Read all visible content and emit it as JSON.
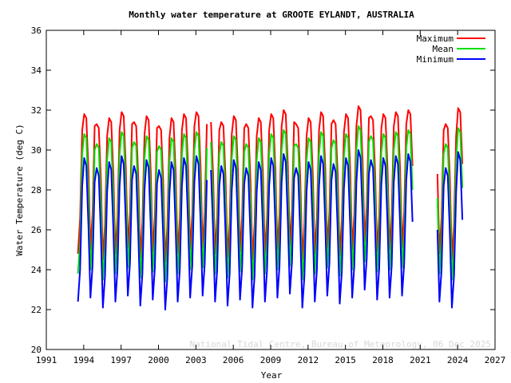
{
  "chart_data": {
    "type": "line",
    "title": "Monthly water temperature at GROOTE EYLANDT, AUSTRALIA",
    "xlabel": "Year",
    "ylabel": "Water Temperature (deg C)",
    "annotation": "National Tidal Centre, Bureau of Meteorology, 06 Dec 2025",
    "xlim": [
      1991,
      2027
    ],
    "xticks": [
      1991,
      1994,
      1997,
      2000,
      2003,
      2006,
      2009,
      2012,
      2015,
      2018,
      2021,
      2024,
      2027
    ],
    "ylim": [
      20,
      36
    ],
    "yticks": [
      20,
      22,
      24,
      26,
      28,
      30,
      32,
      34,
      36
    ],
    "grid": false,
    "legend": "upper right",
    "x": [
      1993.54,
      1993.71,
      1993.88,
      1994.04,
      1994.21,
      1994.38,
      1994.54,
      1994.71,
      1994.88,
      1995.04,
      1995.21,
      1995.38,
      1995.54,
      1995.71,
      1995.88,
      1996.04,
      1996.21,
      1996.38,
      1996.54,
      1996.71,
      1996.88,
      1997.04,
      1997.21,
      1997.38,
      1997.54,
      1997.71,
      1997.88,
      1998.04,
      1998.21,
      1998.38,
      1998.54,
      1998.71,
      1998.88,
      1999.04,
      1999.21,
      1999.38,
      1999.54,
      1999.71,
      1999.88,
      2000.04,
      2000.21,
      2000.38,
      2000.54,
      2000.71,
      2000.88,
      2001.04,
      2001.21,
      2001.38,
      2001.54,
      2001.71,
      2001.88,
      2002.04,
      2002.21,
      2002.38,
      2002.54,
      2002.71,
      2002.88,
      2003.04,
      2003.21,
      2003.38,
      2003.54,
      2003.71,
      2003.88,
      2004.04,
      2004.21,
      2004.38,
      2004.54,
      2004.71,
      2004.88,
      2005.04,
      2005.21,
      2005.38,
      2005.54,
      2005.71,
      2005.88,
      2006.04,
      2006.21,
      2006.38,
      2006.54,
      2006.71,
      2006.88,
      2007.04,
      2007.21,
      2007.38,
      2007.54,
      2007.71,
      2007.88,
      2008.04,
      2008.21,
      2008.38,
      2008.54,
      2008.71,
      2008.88,
      2009.04,
      2009.21,
      2009.38,
      2009.54,
      2009.71,
      2009.88,
      2010.04,
      2010.21,
      2010.38,
      2010.54,
      2010.71,
      2010.88,
      2011.04,
      2011.21,
      2011.38,
      2011.54,
      2011.71,
      2011.88,
      2012.04,
      2012.21,
      2012.38,
      2012.54,
      2012.71,
      2012.88,
      2013.04,
      2013.21,
      2013.38,
      2013.54,
      2013.71,
      2013.88,
      2014.04,
      2014.21,
      2014.38,
      2014.54,
      2014.71,
      2014.88,
      2015.04,
      2015.21,
      2015.38,
      2015.54,
      2015.71,
      2015.88,
      2016.04,
      2016.21,
      2016.38,
      2016.54,
      2016.71,
      2016.88,
      2017.04,
      2017.21,
      2017.38,
      2017.54,
      2017.71,
      2017.88,
      2018.04,
      2018.21,
      2018.38,
      2018.54,
      2018.71,
      2018.88,
      2019.04,
      2019.21,
      2019.38,
      2019.54,
      2019.71,
      2019.88,
      2020.04,
      2020.21,
      2020.38,
      2021.0,
      2022.38,
      2022.54,
      2022.71,
      2022.88,
      2023.04,
      2023.21,
      2023.38,
      2023.54,
      2023.71,
      2023.88,
      2024.04,
      2024.21,
      2024.38
    ],
    "series": [
      {
        "name": "Maximum",
        "color": "#ff0000",
        "values": [
          24.8,
          26.6,
          31.0,
          31.8,
          31.6,
          29.0,
          25.0,
          26.8,
          31.2,
          31.3,
          31.1,
          28.5,
          24.5,
          26.3,
          30.7,
          31.6,
          31.4,
          28.8,
          24.8,
          26.6,
          31.0,
          31.9,
          31.7,
          29.1,
          25.1,
          26.9,
          31.3,
          31.4,
          31.2,
          28.6,
          24.6,
          26.4,
          30.8,
          31.7,
          31.5,
          28.9,
          24.9,
          26.7,
          31.1,
          31.2,
          31.0,
          28.4,
          24.4,
          26.2,
          30.6,
          31.6,
          31.4,
          28.8,
          24.8,
          26.6,
          31.0,
          31.8,
          31.6,
          29.0,
          25.0,
          26.8,
          31.2,
          31.9,
          31.7,
          29.1,
          25.1,
          26.9,
          31.3,
          null,
          31.4,
          28.8,
          24.8,
          26.6,
          31.0,
          31.4,
          31.2,
          28.6,
          24.6,
          26.4,
          30.8,
          31.7,
          31.5,
          28.9,
          24.9,
          26.7,
          31.1,
          31.3,
          31.1,
          28.5,
          24.5,
          26.3,
          30.7,
          31.6,
          31.4,
          28.8,
          24.8,
          26.6,
          31.0,
          31.8,
          31.6,
          29.0,
          25.0,
          26.8,
          31.2,
          32.0,
          31.8,
          29.2,
          25.2,
          27.0,
          31.4,
          31.3,
          31.1,
          28.5,
          24.5,
          26.3,
          30.7,
          31.6,
          31.4,
          28.8,
          24.8,
          26.6,
          31.0,
          31.9,
          31.7,
          29.1,
          25.1,
          26.9,
          31.3,
          31.5,
          31.3,
          28.7,
          24.7,
          26.5,
          30.9,
          31.8,
          31.6,
          29.0,
          25.0,
          26.8,
          31.2,
          32.2,
          32.0,
          29.4,
          25.4,
          27.2,
          31.6,
          31.7,
          31.5,
          28.9,
          24.9,
          26.7,
          31.1,
          31.8,
          31.6,
          29.0,
          25.0,
          26.8,
          31.2,
          31.9,
          31.7,
          29.1,
          25.1,
          26.9,
          31.3,
          32.0,
          31.8,
          29.2,
          null,
          28.8,
          24.8,
          26.6,
          31.0,
          31.3,
          31.1,
          28.5,
          24.5,
          26.3,
          30.7,
          32.1,
          31.9,
          29.3
        ]
      },
      {
        "name": "Mean",
        "color": "#00e000",
        "values": [
          23.8,
          25.4,
          29.8,
          30.8,
          30.6,
          27.8,
          24.0,
          25.6,
          30.0,
          30.3,
          30.1,
          27.3,
          23.5,
          25.1,
          29.5,
          30.6,
          30.4,
          27.6,
          23.8,
          25.4,
          29.8,
          30.9,
          30.7,
          27.9,
          24.1,
          25.7,
          30.1,
          30.4,
          30.2,
          27.4,
          23.6,
          25.2,
          29.6,
          30.7,
          30.5,
          27.7,
          23.9,
          25.5,
          29.9,
          30.2,
          30.0,
          27.2,
          23.4,
          25.0,
          29.4,
          30.6,
          30.4,
          27.6,
          23.8,
          25.4,
          29.8,
          30.8,
          30.6,
          27.8,
          24.0,
          25.6,
          30.0,
          30.9,
          30.7,
          27.9,
          24.1,
          25.7,
          30.1,
          null,
          30.4,
          27.6,
          23.8,
          25.4,
          29.8,
          30.4,
          30.2,
          27.4,
          23.6,
          25.2,
          29.6,
          30.7,
          30.5,
          27.7,
          23.9,
          25.5,
          29.9,
          30.3,
          30.1,
          27.3,
          23.5,
          25.1,
          29.5,
          30.6,
          30.4,
          27.6,
          23.8,
          25.4,
          29.8,
          30.8,
          30.6,
          27.8,
          24.0,
          25.6,
          30.0,
          31.0,
          30.8,
          28.0,
          24.2,
          25.8,
          30.2,
          30.3,
          30.1,
          27.3,
          23.5,
          25.1,
          29.5,
          30.6,
          30.4,
          27.6,
          23.8,
          25.4,
          29.8,
          30.9,
          30.7,
          27.9,
          24.1,
          25.7,
          30.1,
          30.5,
          30.3,
          27.5,
          23.7,
          25.3,
          29.7,
          30.8,
          30.6,
          27.8,
          24.0,
          25.6,
          30.0,
          31.2,
          31.0,
          28.2,
          24.4,
          26.0,
          30.4,
          30.7,
          30.5,
          27.7,
          23.9,
          25.5,
          29.9,
          30.8,
          30.6,
          27.8,
          24.0,
          25.6,
          30.0,
          30.9,
          30.7,
          27.9,
          24.1,
          25.7,
          30.1,
          31.0,
          30.8,
          28.0,
          null,
          27.6,
          23.8,
          25.4,
          29.8,
          30.3,
          30.1,
          27.3,
          23.5,
          25.1,
          29.5,
          31.1,
          30.9,
          28.1
        ]
      },
      {
        "name": "Minimum",
        "color": "#0000ff",
        "values": [
          22.4,
          24.0,
          28.2,
          29.6,
          29.2,
          26.2,
          22.6,
          24.2,
          28.4,
          29.1,
          28.7,
          25.7,
          22.1,
          23.7,
          27.9,
          29.4,
          29.0,
          26.0,
          22.4,
          24.0,
          28.2,
          29.7,
          29.3,
          26.3,
          22.7,
          24.3,
          28.5,
          29.2,
          28.8,
          25.8,
          22.2,
          23.8,
          28.0,
          29.5,
          29.1,
          26.1,
          22.5,
          24.1,
          28.3,
          29.0,
          28.6,
          25.6,
          22.0,
          23.6,
          27.8,
          29.4,
          29.0,
          26.0,
          22.4,
          24.0,
          28.2,
          29.6,
          29.2,
          26.2,
          22.6,
          24.2,
          28.4,
          29.7,
          29.3,
          26.3,
          22.7,
          24.3,
          28.5,
          null,
          29.0,
          26.0,
          22.4,
          24.0,
          28.2,
          29.2,
          28.8,
          25.8,
          22.2,
          23.8,
          28.0,
          29.5,
          29.1,
          26.1,
          22.5,
          24.1,
          28.3,
          29.1,
          28.7,
          25.7,
          22.1,
          23.7,
          27.9,
          29.4,
          29.0,
          26.0,
          22.4,
          24.0,
          28.2,
          29.6,
          29.2,
          26.2,
          22.6,
          24.2,
          28.4,
          29.8,
          29.4,
          26.4,
          22.8,
          24.4,
          28.6,
          29.1,
          28.7,
          25.7,
          22.1,
          23.7,
          27.9,
          29.4,
          29.0,
          26.0,
          22.4,
          24.0,
          28.2,
          29.7,
          29.3,
          26.3,
          22.7,
          24.3,
          28.5,
          29.3,
          28.9,
          25.9,
          22.3,
          23.9,
          28.1,
          29.6,
          29.2,
          26.2,
          22.6,
          24.2,
          28.4,
          30.0,
          29.6,
          26.6,
          23.0,
          24.6,
          28.8,
          29.5,
          29.1,
          26.1,
          22.5,
          24.1,
          28.3,
          29.6,
          29.2,
          26.2,
          22.6,
          24.2,
          28.4,
          29.7,
          29.3,
          26.3,
          22.7,
          24.3,
          28.5,
          29.8,
          29.4,
          26.4,
          null,
          26.0,
          22.4,
          24.0,
          28.2,
          29.1,
          28.7,
          25.7,
          22.1,
          23.7,
          27.9,
          29.9,
          29.5,
          26.5
        ]
      }
    ]
  }
}
